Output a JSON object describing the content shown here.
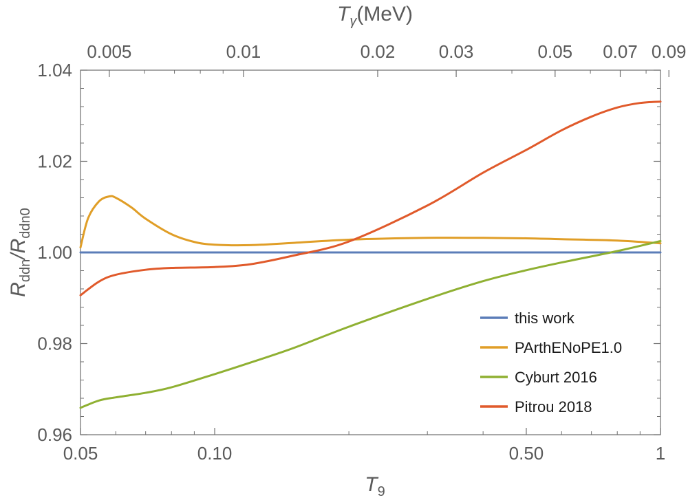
{
  "chart_data": {
    "type": "line",
    "xscale": "log",
    "xlim": [
      0.05,
      1.0
    ],
    "ylim": [
      0.96,
      1.04
    ],
    "xlabel": {
      "main": "T",
      "sub": "9"
    },
    "ylabel": {
      "num_main": "R",
      "num_sub": "ddn",
      "sep": "/",
      "den_main": "R",
      "den_sub": "ddn0"
    },
    "top_axis_label": {
      "main": "T",
      "sub": "γ",
      "unit": "(MeV)"
    },
    "x_ticks": [
      {
        "value": 0.05,
        "label": "0.05"
      },
      {
        "value": 0.1,
        "label": "0.10"
      },
      {
        "value": 0.5,
        "label": "0.50"
      },
      {
        "value": 1.0,
        "label": "1"
      }
    ],
    "y_ticks": [
      {
        "value": 0.96,
        "label": "0.96"
      },
      {
        "value": 0.98,
        "label": "0.98"
      },
      {
        "value": 1.0,
        "label": "1.00"
      },
      {
        "value": 1.02,
        "label": "1.02"
      },
      {
        "value": 1.04,
        "label": "1.04"
      }
    ],
    "top_ticks": [
      {
        "value": 0.005,
        "label": "0.005"
      },
      {
        "value": 0.01,
        "label": "0.01"
      },
      {
        "value": 0.02,
        "label": "0.02"
      },
      {
        "value": 0.03,
        "label": "0.03"
      },
      {
        "value": 0.05,
        "label": "0.05"
      },
      {
        "value": 0.07,
        "label": "0.07"
      },
      {
        "value": 0.09,
        "label": "0.09"
      }
    ],
    "top_axis_conversion_T9_per_MeV": 11.6045,
    "legend_position": "lower-right",
    "series": [
      {
        "name": "this work",
        "color": "#5b7db8",
        "x": [
          0.05,
          0.07,
          0.1,
          0.2,
          0.3,
          0.5,
          0.7,
          1.0
        ],
        "y": [
          1.0,
          1.0,
          1.0,
          1.0,
          1.0,
          1.0,
          1.0,
          1.0
        ]
      },
      {
        "name": "PArthENoPE1.0",
        "color": "#e09e27",
        "x": [
          0.05,
          0.052,
          0.055,
          0.058,
          0.06,
          0.065,
          0.07,
          0.08,
          0.09,
          0.1,
          0.12,
          0.15,
          0.2,
          0.3,
          0.4,
          0.5,
          0.6,
          0.8,
          1.0
        ],
        "y": [
          1.0011,
          1.0075,
          1.0112,
          1.0123,
          1.012,
          1.0099,
          1.0074,
          1.004,
          1.0023,
          1.0017,
          1.0016,
          1.0021,
          1.0028,
          1.0032,
          1.0032,
          1.0031,
          1.0029,
          1.0026,
          1.002
        ]
      },
      {
        "name": "Cyburt 2016",
        "color": "#8fb032",
        "x": [
          0.05,
          0.055,
          0.06,
          0.07,
          0.08,
          0.1,
          0.12,
          0.15,
          0.2,
          0.3,
          0.4,
          0.5,
          0.6,
          0.8,
          1.0
        ],
        "y": [
          0.9659,
          0.9675,
          0.9682,
          0.9692,
          0.9704,
          0.9733,
          0.9758,
          0.979,
          0.9837,
          0.9898,
          0.9937,
          0.9961,
          0.9978,
          1.0003,
          1.0025
        ]
      },
      {
        "name": "Pitrou 2018",
        "color": "#e05a2b",
        "x": [
          0.05,
          0.055,
          0.06,
          0.07,
          0.08,
          0.1,
          0.12,
          0.15,
          0.2,
          0.3,
          0.4,
          0.5,
          0.6,
          0.7,
          0.8,
          0.9,
          1.0
        ],
        "y": [
          0.9906,
          0.9936,
          0.9951,
          0.9962,
          0.9966,
          0.9968,
          0.9974,
          0.9993,
          1.0024,
          1.0103,
          1.0175,
          1.0225,
          1.0268,
          1.0298,
          1.0318,
          1.0328,
          1.0331
        ]
      }
    ]
  }
}
